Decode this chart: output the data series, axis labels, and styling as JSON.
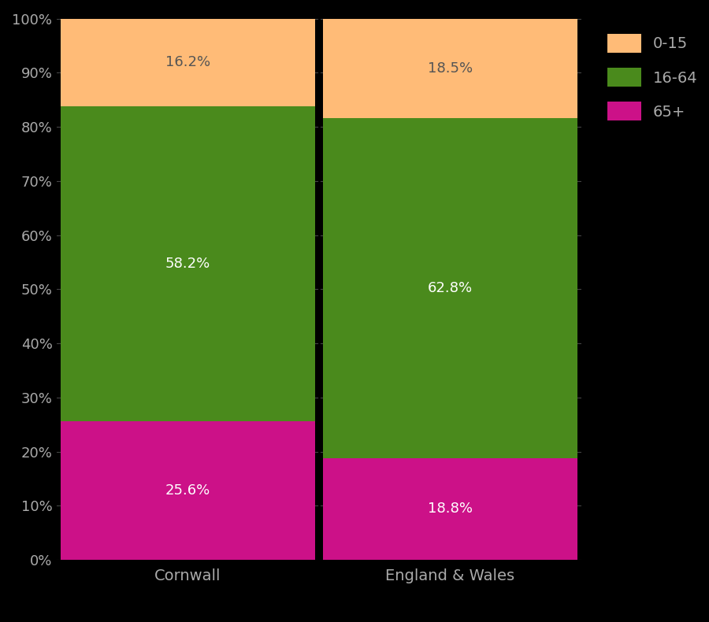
{
  "categories": [
    "Cornwall",
    "England & Wales"
  ],
  "segments": {
    "65+": [
      25.6,
      18.8
    ],
    "16-64": [
      58.2,
      62.8
    ],
    "0-15": [
      16.2,
      18.5
    ]
  },
  "colors": {
    "0-15": "#FFBB77",
    "16-64": "#4A8A1C",
    "65+": "#CC1188"
  },
  "label_color": "#FFFFFF",
  "background_color": "#000000",
  "text_color": "#AAAAAA",
  "bar_width": 0.97,
  "ylim": [
    0,
    100
  ],
  "yticks": [
    0,
    10,
    20,
    30,
    40,
    50,
    60,
    70,
    80,
    90,
    100
  ],
  "ytick_labels": [
    "0%",
    "10%",
    "20%",
    "30%",
    "40%",
    "50%",
    "60%",
    "70%",
    "80%",
    "90%",
    "100%"
  ],
  "legend_labels": [
    "0-15",
    "16-64",
    "65+"
  ],
  "figsize": [
    9.0,
    7.9
  ],
  "dpi": 100,
  "label_fontsize": 13,
  "tick_fontsize": 13,
  "legend_fontsize": 14,
  "xlabel_fontsize": 14,
  "grid_color": "#444444",
  "divider_color": "#000000",
  "label_colors": {
    "0-15": "#555555",
    "16-64": "#FFFFFF",
    "65+": "#FFFFFF"
  }
}
